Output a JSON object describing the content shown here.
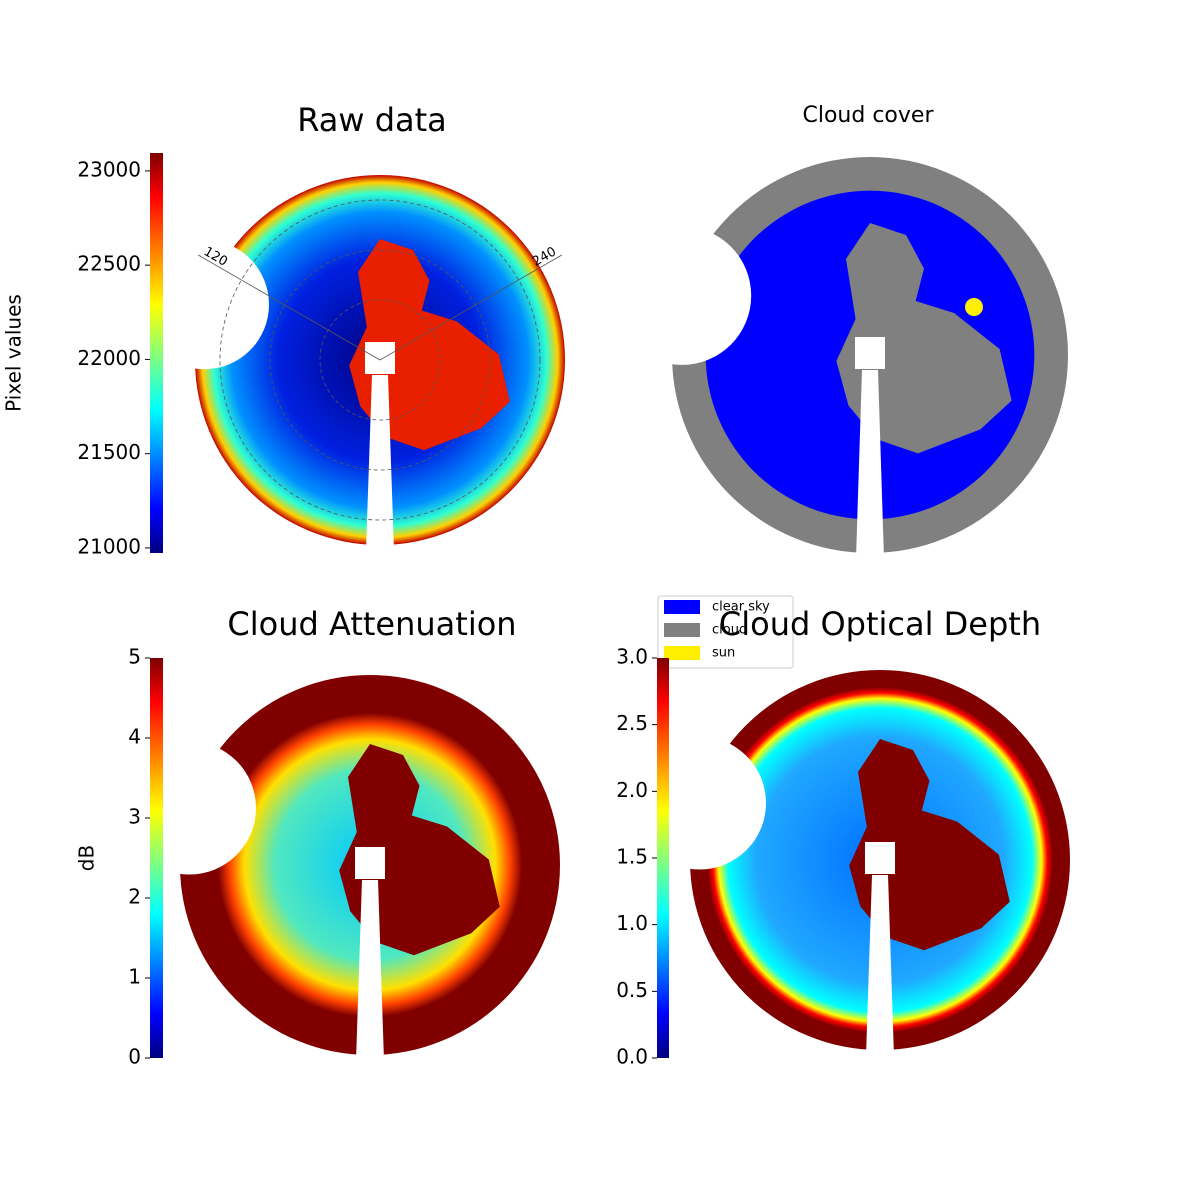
{
  "chart_data": [
    {
      "type": "image",
      "title": "Raw data",
      "colormap": "jet",
      "colorbar_label": "Pixel values",
      "clim": [
        20973,
        23095
      ],
      "ticks": [
        21000,
        21500,
        22000,
        22500,
        23000
      ],
      "annotations": [
        "120",
        "240"
      ]
    },
    {
      "type": "image",
      "title": "Cloud cover",
      "series": [
        {
          "name": "clear sky",
          "color": "#0000ff"
        },
        {
          "name": "cloud",
          "color": "#808080"
        },
        {
          "name": "sun",
          "color": "#ffee00"
        }
      ]
    },
    {
      "type": "image",
      "title": "Cloud Attenuation",
      "colormap": "jet",
      "colorbar_label": "dB",
      "clim": [
        0,
        5
      ],
      "ticks": [
        0,
        1,
        2,
        3,
        4,
        5
      ]
    },
    {
      "type": "image",
      "title": "Cloud Optical Depth",
      "colormap": "jet",
      "clim": [
        0,
        3
      ],
      "ticks": [
        {
          "value": 0,
          "label": "0.0"
        },
        {
          "value": 0.5,
          "label": "0.5"
        },
        {
          "value": 1,
          "label": "1.0"
        },
        {
          "value": 1.5,
          "label": "1.5"
        },
        {
          "value": 2,
          "label": "2.0"
        },
        {
          "value": 2.5,
          "label": "2.5"
        },
        {
          "value": 3,
          "label": "3.0"
        }
      ]
    }
  ]
}
